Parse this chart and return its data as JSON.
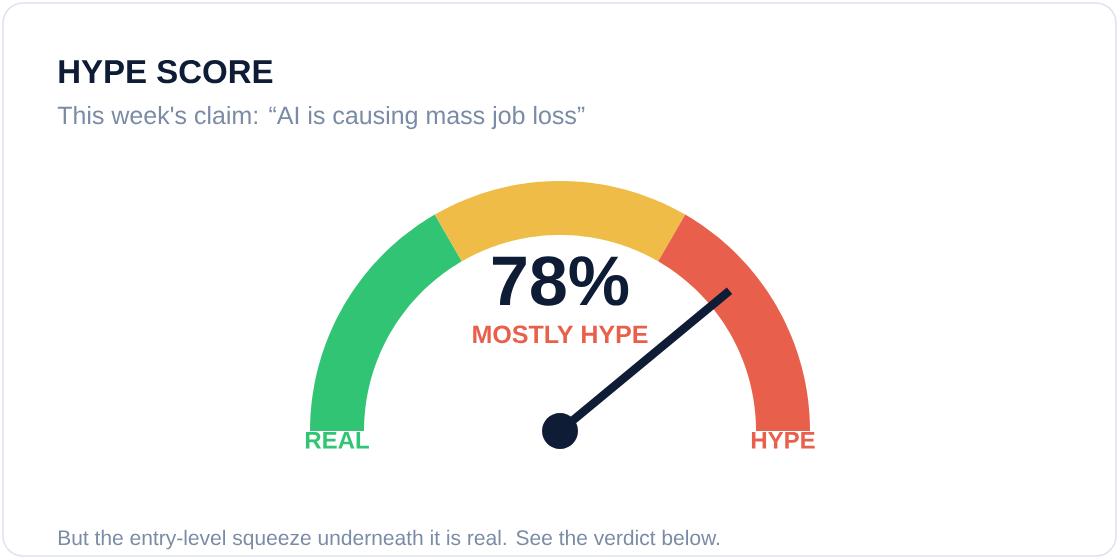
{
  "chart_data": {
    "type": "donut",
    "title": "HYPE SCORE",
    "subtitle": "This week's claim: “AI is causing mass job loss”",
    "categories": [
      "REAL",
      null,
      "HYPE"
    ],
    "values": [
      33.3,
      33.4,
      33.3
    ],
    "colors": [
      "#30c474",
      "#f0bc48",
      "#e8604c"
    ],
    "needle": "HYPE",
    "annotations": [
      "78%",
      "MOSTLY HYPE",
      "But the entry-level squeeze underneath it is real. See the verdict below."
    ]
  }
}
